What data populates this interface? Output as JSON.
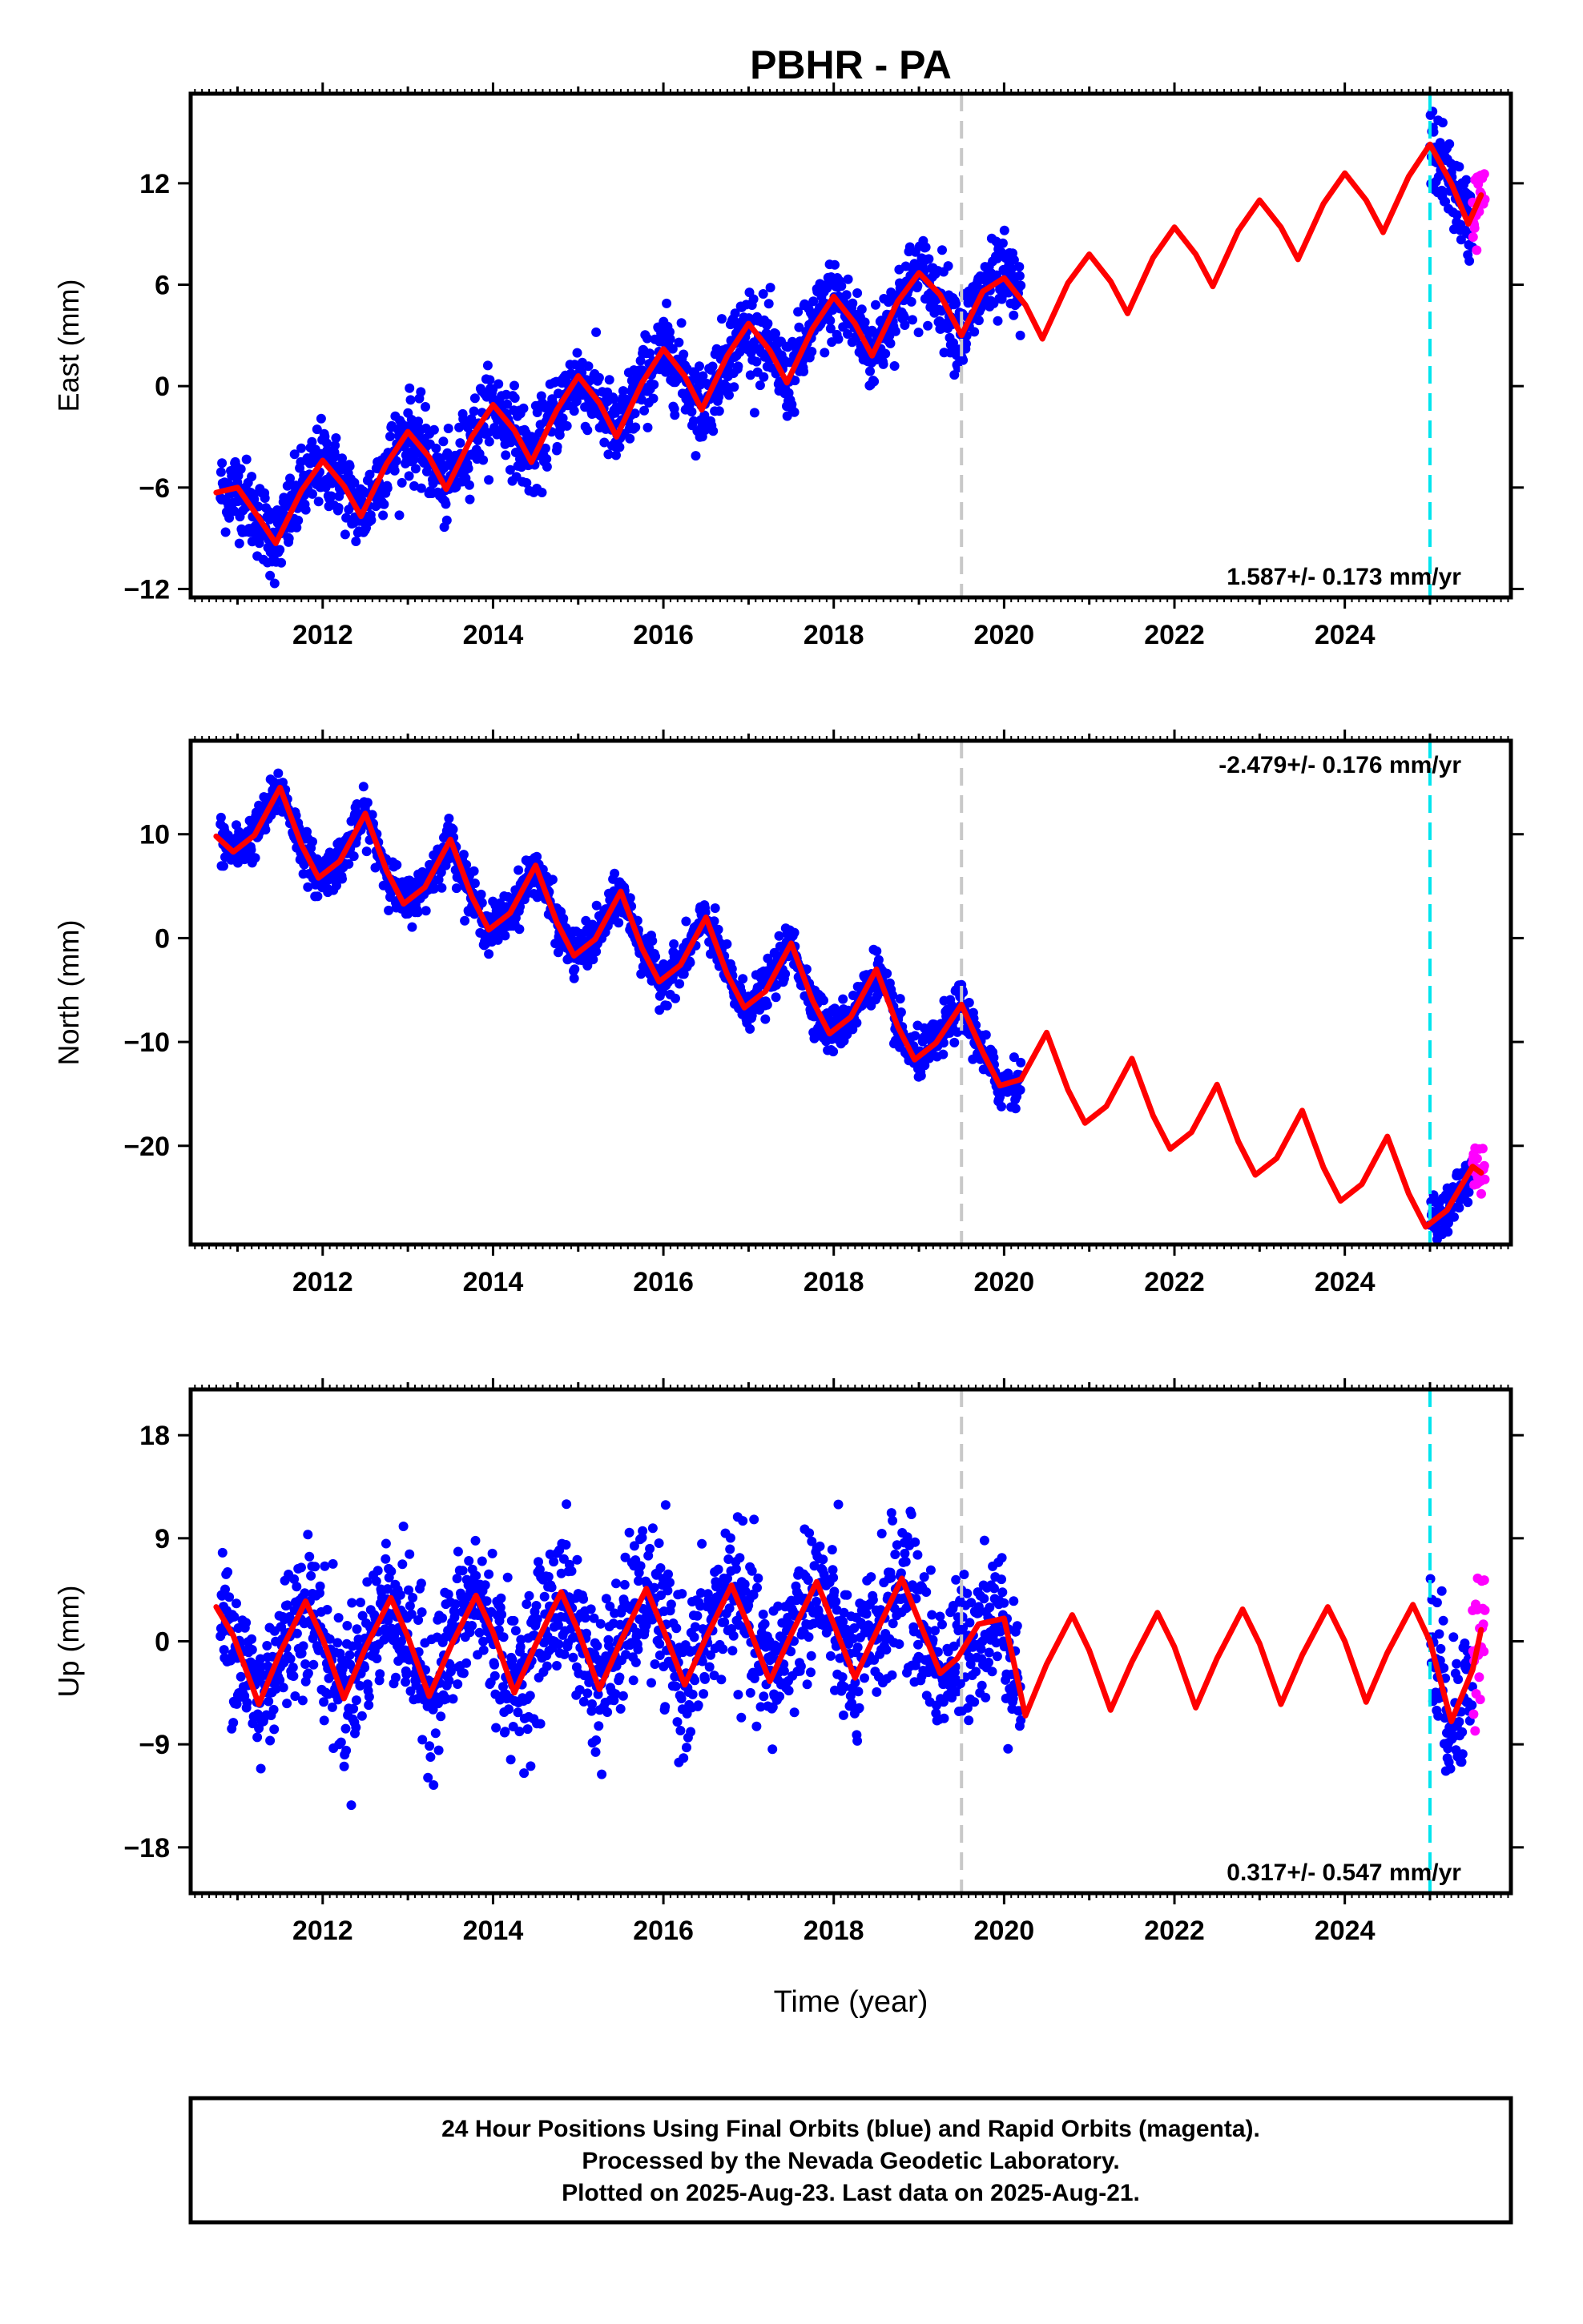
{
  "title": "PBHR - PA",
  "x_axis_label": "Time (year)",
  "caption": [
    "24 Hour Positions Using Final Orbits (blue) and Rapid Orbits (magenta).",
    "Processed by the Nevada Geodetic Laboratory.",
    "Plotted on 2025-Aug-23. Last data on 2025-Aug-21."
  ],
  "colors": {
    "final_orbits": "#0000ff",
    "rapid_orbits": "#ff00ff",
    "model_fit": "#ff0000",
    "equipment_change": "#c8c8c8",
    "rapid_start": "#00e5ee",
    "frame": "#000000"
  },
  "chart_data": [
    {
      "type": "scatter",
      "ylabel": "East (mm)",
      "xlim": [
        2010.45,
        2025.95
      ],
      "ylim": [
        -12.5,
        17.3
      ],
      "yticks": [
        12,
        6,
        0,
        -6,
        -12
      ],
      "xticks": [
        2012,
        2014,
        2016,
        2018,
        2020,
        2022,
        2024
      ],
      "rate_label": "1.587+/- 0.173 mm/yr",
      "rate_position": "bottom-right",
      "final_orbits_span": [
        2010.8,
        2020.2
      ],
      "final_orbits_span_2": [
        2025.0,
        2025.5
      ],
      "rapid_orbits_span": [
        2025.5,
        2025.65
      ],
      "model_fit": {
        "x": [
          2010.75,
          2011.0,
          2011.25,
          2011.45,
          2011.75,
          2012.0,
          2012.25,
          2012.45,
          2012.75,
          2013.0,
          2013.25,
          2013.45,
          2013.75,
          2014.0,
          2014.25,
          2014.45,
          2014.75,
          2015.0,
          2015.25,
          2015.45,
          2015.75,
          2016.0,
          2016.25,
          2016.45,
          2016.75,
          2017.0,
          2017.25,
          2017.45,
          2017.75,
          2018.0,
          2018.25,
          2018.45,
          2018.75,
          2019.0,
          2019.25,
          2019.5,
          2019.75,
          2020.0,
          2020.25,
          2020.45,
          2020.75,
          2021.0,
          2021.25,
          2021.45,
          2021.75,
          2022.0,
          2022.25,
          2022.45,
          2022.75,
          2023.0,
          2023.25,
          2023.45,
          2023.75,
          2024.0,
          2024.25,
          2024.45,
          2024.75,
          2025.0,
          2025.25,
          2025.45,
          2025.6
        ],
        "y": [
          -6.3,
          -6.0,
          -7.8,
          -9.3,
          -6.2,
          -4.4,
          -5.9,
          -7.7,
          -4.6,
          -2.7,
          -4.2,
          -6.1,
          -3.0,
          -1.1,
          -2.6,
          -4.5,
          -1.4,
          0.6,
          -1.0,
          -3.0,
          0.2,
          2.2,
          0.6,
          -1.4,
          1.8,
          3.7,
          2.1,
          0.2,
          3.4,
          5.3,
          3.7,
          1.8,
          5.0,
          6.7,
          5.4,
          3.0,
          5.6,
          6.4,
          4.8,
          2.8,
          6.1,
          7.8,
          6.2,
          4.3,
          7.6,
          9.4,
          7.8,
          5.9,
          9.2,
          11.0,
          9.4,
          7.5,
          10.8,
          12.6,
          11.0,
          9.1,
          12.4,
          14.3,
          12.0,
          9.6,
          11.3
        ]
      }
    },
    {
      "type": "scatter",
      "ylabel": "North (mm)",
      "xlim": [
        2010.45,
        2025.95
      ],
      "ylim": [
        -29.5,
        19.0
      ],
      "yticks": [
        10,
        0,
        -10,
        -20
      ],
      "xticks": [
        2012,
        2014,
        2016,
        2018,
        2020,
        2022,
        2024
      ],
      "rate_label": "-2.479+/- 0.176 mm/yr",
      "rate_position": "top-right",
      "final_orbits_span": [
        2010.8,
        2020.2
      ],
      "final_orbits_span_2": [
        2025.0,
        2025.5
      ],
      "rapid_orbits_span": [
        2025.5,
        2025.65
      ],
      "model_fit": {
        "x": [
          2010.75,
          2010.95,
          2011.2,
          2011.5,
          2011.75,
          2011.95,
          2012.2,
          2012.5,
          2012.75,
          2012.95,
          2013.2,
          2013.5,
          2013.75,
          2013.95,
          2014.2,
          2014.5,
          2014.75,
          2014.95,
          2015.2,
          2015.5,
          2015.75,
          2015.95,
          2016.2,
          2016.5,
          2016.75,
          2016.95,
          2017.2,
          2017.5,
          2017.75,
          2017.95,
          2018.2,
          2018.5,
          2018.75,
          2018.95,
          2019.2,
          2019.5,
          2019.75,
          2019.95,
          2020.2,
          2020.5,
          2020.75,
          2020.95,
          2021.2,
          2021.5,
          2021.75,
          2021.95,
          2022.2,
          2022.5,
          2022.75,
          2022.95,
          2023.2,
          2023.5,
          2023.75,
          2023.95,
          2024.2,
          2024.5,
          2024.75,
          2024.95,
          2025.2,
          2025.5,
          2025.6
        ],
        "y": [
          9.8,
          8.3,
          9.9,
          14.5,
          9.0,
          5.8,
          7.4,
          12.0,
          6.5,
          3.3,
          4.9,
          9.5,
          4.0,
          0.8,
          2.4,
          7.0,
          1.5,
          -1.7,
          -0.1,
          4.5,
          -1.0,
          -4.2,
          -2.6,
          2.0,
          -3.5,
          -6.7,
          -5.1,
          -0.5,
          -6.0,
          -9.2,
          -7.6,
          -3.0,
          -8.5,
          -11.7,
          -10.1,
          -6.4,
          -11.0,
          -14.2,
          -13.6,
          -9.1,
          -14.6,
          -17.8,
          -16.2,
          -11.6,
          -17.1,
          -20.3,
          -18.7,
          -14.1,
          -19.6,
          -22.8,
          -21.2,
          -16.6,
          -22.1,
          -25.3,
          -23.7,
          -19.1,
          -24.6,
          -27.8,
          -26.2,
          -22.0,
          -22.6
        ]
      }
    },
    {
      "type": "scatter",
      "ylabel": "Up (mm)",
      "xlim": [
        2010.45,
        2025.95
      ],
      "ylim": [
        -22.0,
        22.0
      ],
      "yticks": [
        18,
        9,
        0,
        -9,
        -18
      ],
      "xticks": [
        2012,
        2014,
        2016,
        2018,
        2020,
        2022,
        2024
      ],
      "xlabel": "Time (year)",
      "rate_label": "0.317+/- 0.547 mm/yr",
      "rate_position": "bottom-right",
      "final_orbits_span": [
        2010.8,
        2020.2
      ],
      "final_orbits_span_2": [
        2025.0,
        2025.5
      ],
      "rapid_orbits_span": [
        2025.5,
        2025.65
      ],
      "model_fit": {
        "x": [
          2010.75,
          2010.95,
          2011.25,
          2011.5,
          2011.8,
          2012.0,
          2012.25,
          2012.5,
          2012.8,
          2013.0,
          2013.25,
          2013.5,
          2013.8,
          2014.0,
          2014.25,
          2014.5,
          2014.8,
          2015.0,
          2015.25,
          2015.5,
          2015.8,
          2016.0,
          2016.25,
          2016.5,
          2016.8,
          2017.0,
          2017.25,
          2017.5,
          2017.8,
          2018.0,
          2018.25,
          2018.5,
          2018.8,
          2019.0,
          2019.25,
          2019.45,
          2019.7,
          2020.0,
          2020.25,
          2020.5,
          2020.8,
          2021.0,
          2021.25,
          2021.5,
          2021.8,
          2022.0,
          2022.25,
          2022.5,
          2022.8,
          2023.0,
          2023.25,
          2023.5,
          2023.8,
          2024.0,
          2024.25,
          2024.5,
          2024.8,
          2025.0,
          2025.25,
          2025.5,
          2025.6
        ],
        "y": [
          3.0,
          0.5,
          -5.5,
          -1.0,
          3.5,
          0.2,
          -5.0,
          -0.6,
          3.8,
          0.4,
          -4.8,
          -0.5,
          4.0,
          0.8,
          -4.5,
          -0.3,
          4.3,
          0.9,
          -4.2,
          0.0,
          4.6,
          1.0,
          -3.8,
          0.3,
          4.9,
          1.3,
          -3.5,
          0.6,
          5.2,
          1.5,
          -3.2,
          0.8,
          5.5,
          1.8,
          -2.8,
          -1.5,
          1.5,
          2.0,
          -6.5,
          -2.0,
          2.3,
          -0.8,
          -6.0,
          -1.8,
          2.5,
          -0.5,
          -5.8,
          -1.5,
          2.8,
          -0.2,
          -5.5,
          -1.2,
          3.0,
          0.0,
          -5.3,
          -1.0,
          3.2,
          0.0,
          -7.0,
          -2.5,
          1.0
        ]
      }
    }
  ]
}
